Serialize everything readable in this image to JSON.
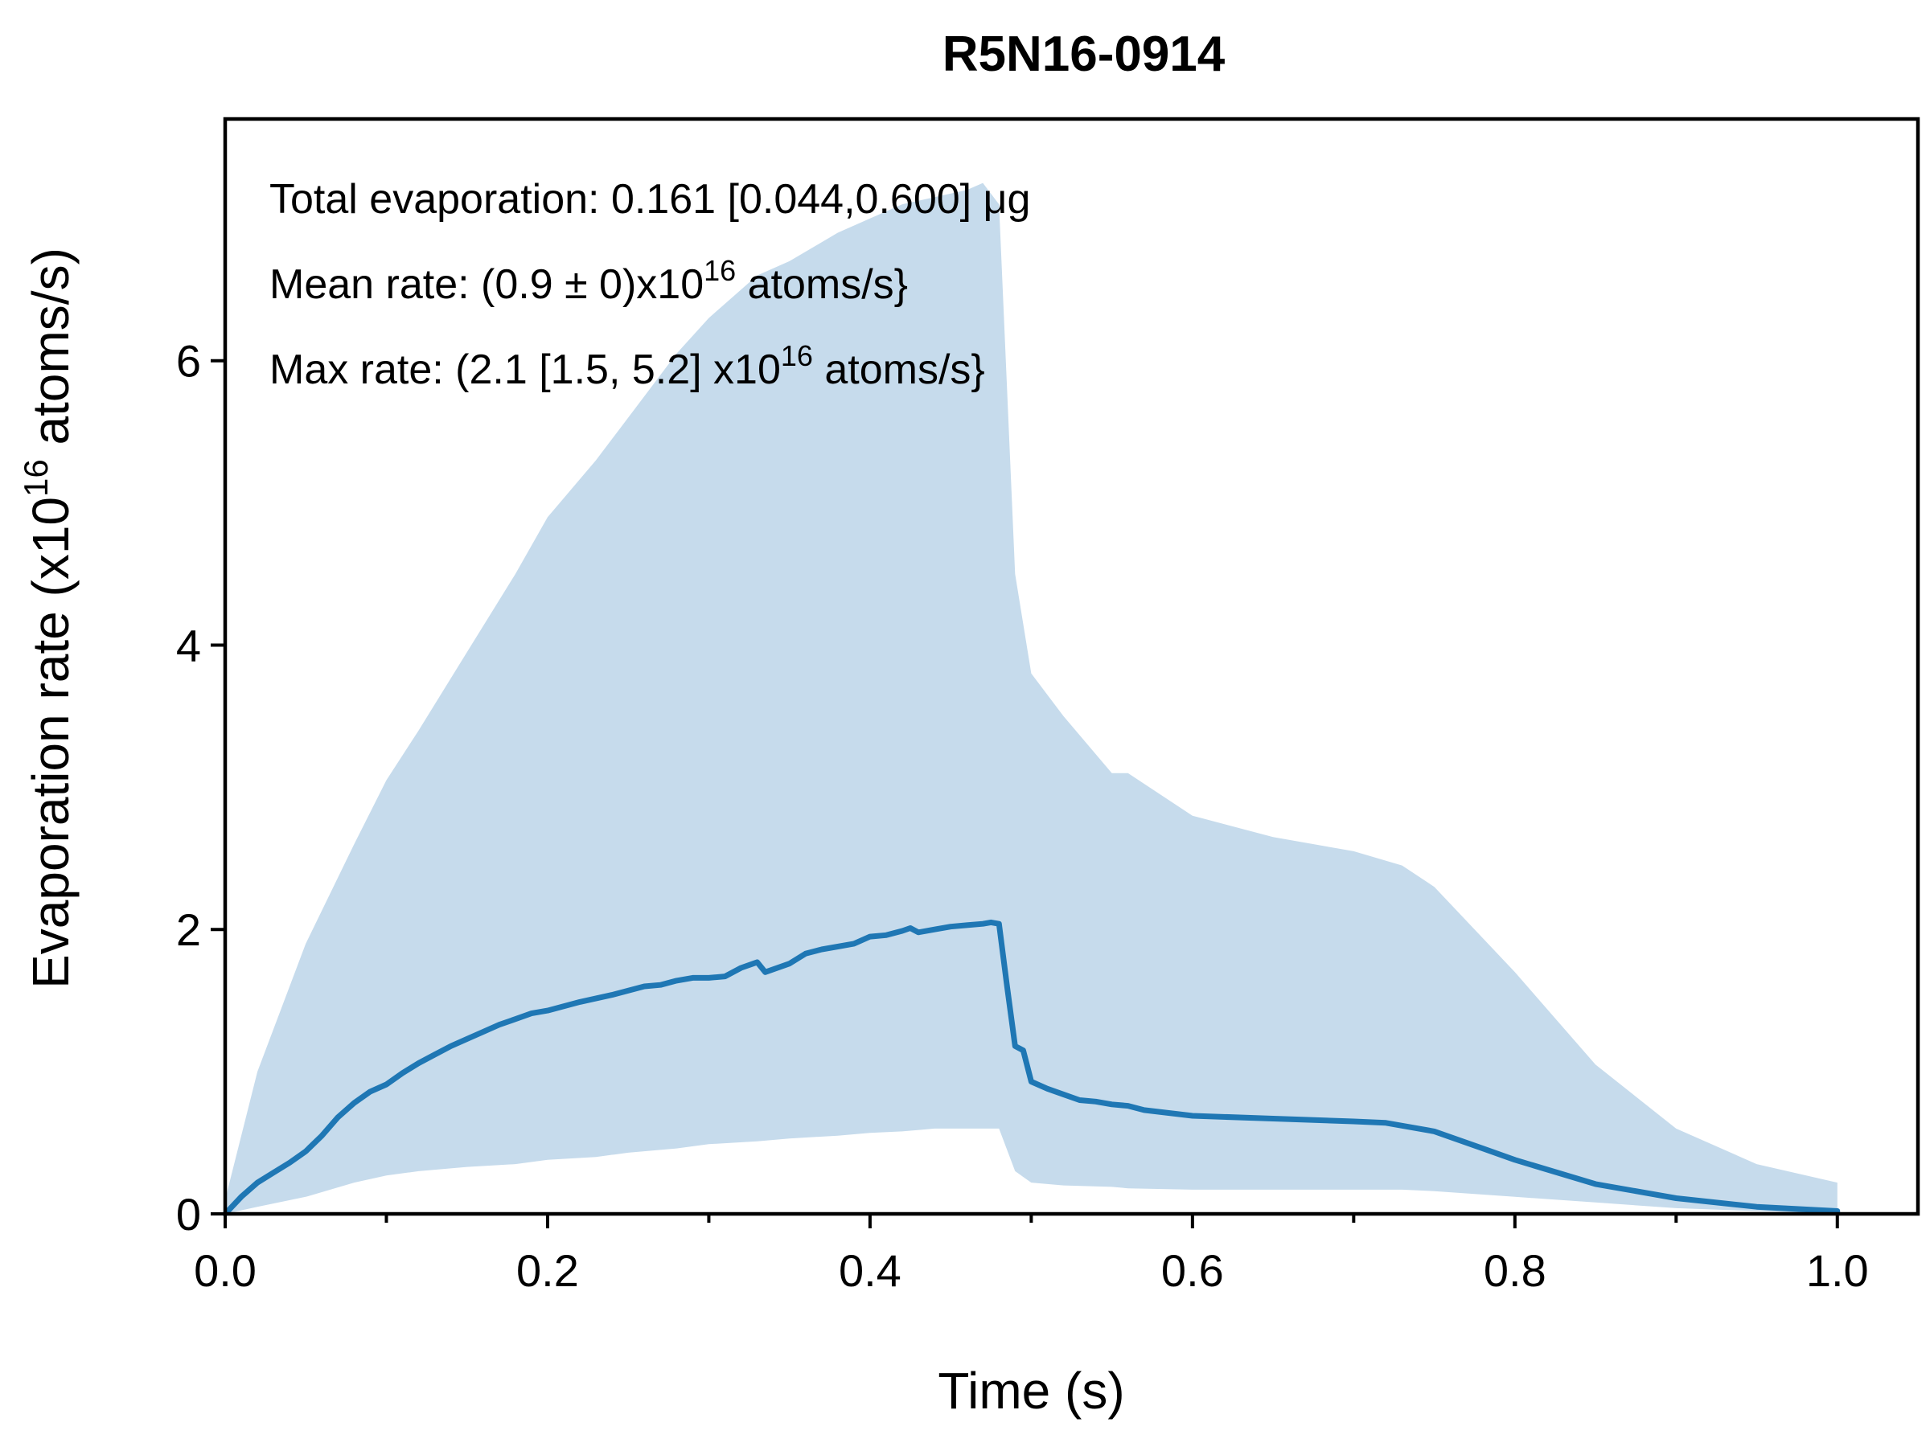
{
  "chart_data": {
    "type": "line",
    "title": "R5N16-0914",
    "xlabel": "Time (s)",
    "ylabel": {
      "pre": "Evaporation rate (x10",
      "sup": "16",
      "post": " atoms/s)"
    },
    "xlim": [
      0.0,
      1.05
    ],
    "ylim": [
      0,
      7.7
    ],
    "xticks": [
      0.0,
      0.1,
      0.2,
      0.3,
      0.4,
      0.5,
      0.6,
      0.7,
      0.8,
      0.9,
      1.0
    ],
    "xtick_labels": [
      "0.0",
      "",
      "0.2",
      "",
      "0.4",
      "",
      "0.6",
      "",
      "0.8",
      "",
      "1.0"
    ],
    "yticks": [
      0,
      2,
      4,
      6
    ],
    "ytick_labels": [
      "0",
      "2",
      "4",
      "6"
    ],
    "colors": {
      "line": "#1f77b4",
      "band": "#c6dbec",
      "axes": "#000000"
    },
    "annotations": [
      {
        "pre": "Total evaporation: 0.161 [0.044,0.600] μg",
        "sup": "",
        "post": ""
      },
      {
        "pre": "Mean rate: (0.9 ± 0)x10",
        "sup": "16",
        "post": " atoms/s}"
      },
      {
        "pre": "Max rate: (2.1 [1.5, 5.2] x10",
        "sup": "16",
        "post": " atoms/s}"
      }
    ],
    "series": [
      {
        "x": [
          0.0,
          0.01,
          0.02,
          0.03,
          0.04,
          0.05,
          0.06,
          0.07,
          0.08,
          0.09,
          0.1,
          0.11,
          0.12,
          0.13,
          0.14,
          0.15,
          0.16,
          0.17,
          0.18,
          0.19,
          0.2,
          0.22,
          0.24,
          0.26,
          0.27,
          0.28,
          0.29,
          0.3,
          0.31,
          0.32,
          0.33,
          0.335,
          0.35,
          0.36,
          0.37,
          0.38,
          0.39,
          0.4,
          0.41,
          0.42,
          0.425,
          0.43,
          0.44,
          0.45,
          0.46,
          0.47,
          0.475,
          0.48,
          0.485,
          0.49,
          0.495,
          0.5,
          0.51,
          0.52,
          0.53,
          0.54,
          0.55,
          0.56,
          0.57,
          0.6,
          0.65,
          0.7,
          0.72,
          0.75,
          0.78,
          0.8,
          0.85,
          0.9,
          0.95,
          1.0
        ],
        "y": [
          0.0,
          0.12,
          0.22,
          0.29,
          0.36,
          0.44,
          0.55,
          0.68,
          0.78,
          0.86,
          0.91,
          0.99,
          1.06,
          1.12,
          1.18,
          1.23,
          1.28,
          1.33,
          1.37,
          1.41,
          1.43,
          1.49,
          1.54,
          1.6,
          1.61,
          1.64,
          1.66,
          1.66,
          1.67,
          1.73,
          1.77,
          1.7,
          1.76,
          1.83,
          1.86,
          1.88,
          1.9,
          1.95,
          1.96,
          1.99,
          2.01,
          1.98,
          2.0,
          2.02,
          2.03,
          2.04,
          2.05,
          2.04,
          1.6,
          1.18,
          1.15,
          0.93,
          0.88,
          0.84,
          0.8,
          0.79,
          0.77,
          0.76,
          0.73,
          0.69,
          0.67,
          0.65,
          0.64,
          0.58,
          0.46,
          0.38,
          0.21,
          0.11,
          0.05,
          0.02
        ]
      }
    ],
    "band": {
      "x": [
        0.0,
        0.02,
        0.05,
        0.08,
        0.1,
        0.12,
        0.15,
        0.18,
        0.2,
        0.23,
        0.25,
        0.28,
        0.3,
        0.33,
        0.35,
        0.38,
        0.4,
        0.42,
        0.44,
        0.46,
        0.47,
        0.48,
        0.49,
        0.5,
        0.52,
        0.55,
        0.56,
        0.6,
        0.65,
        0.7,
        0.73,
        0.75,
        0.8,
        0.85,
        0.9,
        0.95,
        1.0
      ],
      "upper": [
        0.1,
        1.0,
        1.9,
        2.6,
        3.05,
        3.4,
        3.95,
        4.5,
        4.9,
        5.3,
        5.6,
        6.05,
        6.3,
        6.6,
        6.7,
        6.9,
        7.0,
        7.1,
        7.15,
        7.2,
        7.25,
        7.1,
        4.5,
        3.8,
        3.5,
        3.1,
        3.1,
        2.8,
        2.65,
        2.55,
        2.45,
        2.3,
        1.7,
        1.05,
        0.6,
        0.35,
        0.22
      ],
      "lower": [
        0.0,
        0.05,
        0.12,
        0.22,
        0.27,
        0.3,
        0.33,
        0.35,
        0.38,
        0.4,
        0.43,
        0.46,
        0.49,
        0.51,
        0.53,
        0.55,
        0.57,
        0.58,
        0.6,
        0.6,
        0.6,
        0.6,
        0.3,
        0.22,
        0.2,
        0.19,
        0.18,
        0.17,
        0.17,
        0.17,
        0.17,
        0.16,
        0.12,
        0.08,
        0.04,
        0.02,
        0.0
      ]
    }
  }
}
